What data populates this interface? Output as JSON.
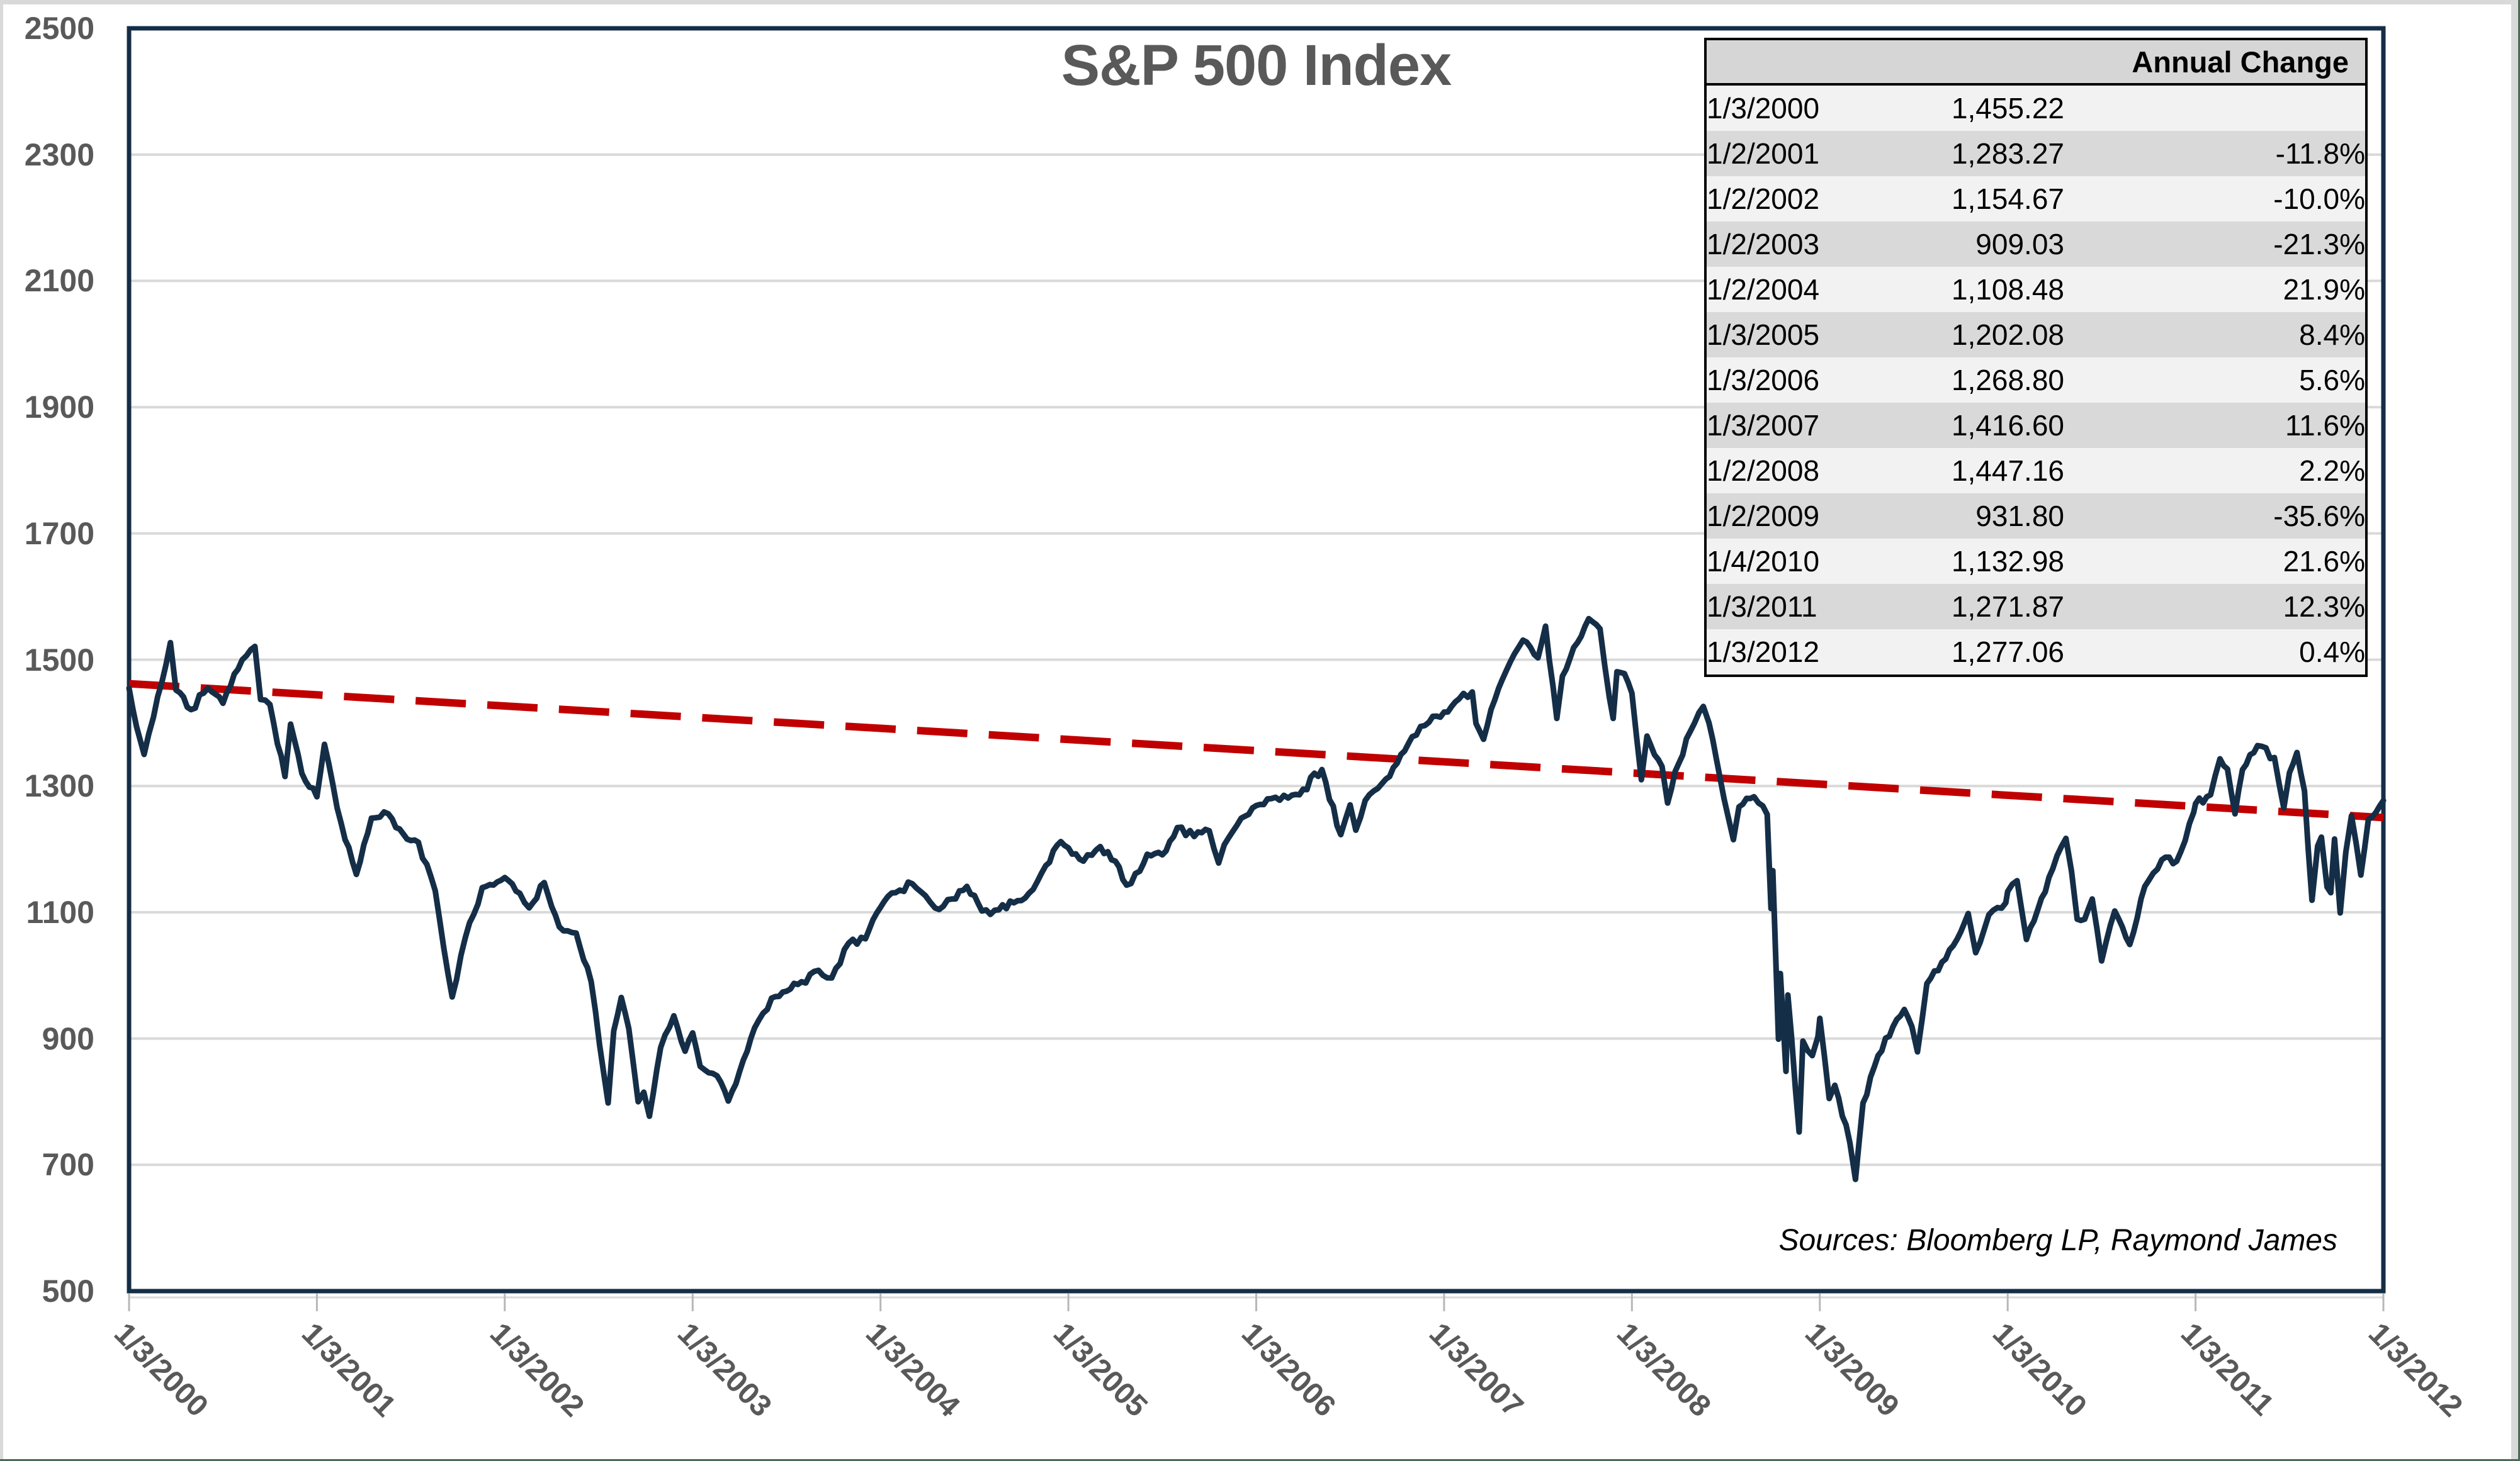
{
  "title": "S&P 500 Index",
  "sources_note": "Sources: Bloomberg LP, Raymond James",
  "table": {
    "header": "Annual Change",
    "rows": [
      {
        "date": "1/3/2000",
        "value": "1,455.22",
        "change": ""
      },
      {
        "date": "1/2/2001",
        "value": "1,283.27",
        "change": "-11.8%"
      },
      {
        "date": "1/2/2002",
        "value": "1,154.67",
        "change": "-10.0%"
      },
      {
        "date": "1/2/2003",
        "value": "909.03",
        "change": "-21.3%"
      },
      {
        "date": "1/2/2004",
        "value": "1,108.48",
        "change": "21.9%"
      },
      {
        "date": "1/3/2005",
        "value": "1,202.08",
        "change": "8.4%"
      },
      {
        "date": "1/3/2006",
        "value": "1,268.80",
        "change": "5.6%"
      },
      {
        "date": "1/3/2007",
        "value": "1,416.60",
        "change": "11.6%"
      },
      {
        "date": "1/2/2008",
        "value": "1,447.16",
        "change": "2.2%"
      },
      {
        "date": "1/2/2009",
        "value": "931.80",
        "change": "-35.6%"
      },
      {
        "date": "1/4/2010",
        "value": "1,132.98",
        "change": "21.6%"
      },
      {
        "date": "1/3/2011",
        "value": "1,271.87",
        "change": "12.3%"
      },
      {
        "date": "1/3/2012",
        "value": "1,277.06",
        "change": "0.4%"
      }
    ]
  },
  "chart_data": {
    "type": "line",
    "title": "S&P 500 Index",
    "xlabel": "",
    "ylabel": "",
    "ylim": [
      500,
      2500
    ],
    "y_ticks": [
      2500,
      2300,
      2100,
      1900,
      1700,
      1500,
      1300,
      1100,
      900,
      700,
      500
    ],
    "x_range_years_from_2000": [
      0,
      12
    ],
    "x_tick_labels": [
      "1/3/2000",
      "1/3/2001",
      "1/3/2002",
      "1/3/2003",
      "1/3/2004",
      "1/3/2005",
      "1/3/2006",
      "1/3/2007",
      "1/3/2008",
      "1/3/2009",
      "1/3/2010",
      "1/3/2011",
      "1/3/2012"
    ],
    "grid": true,
    "legend": "none",
    "annual_closes": [
      {
        "date": "1/3/2000",
        "close": 1455.22,
        "change_pct": null
      },
      {
        "date": "1/2/2001",
        "close": 1283.27,
        "change_pct": -11.8
      },
      {
        "date": "1/2/2002",
        "close": 1154.67,
        "change_pct": -10.0
      },
      {
        "date": "1/2/2003",
        "close": 909.03,
        "change_pct": -21.3
      },
      {
        "date": "1/2/2004",
        "close": 1108.48,
        "change_pct": 21.9
      },
      {
        "date": "1/3/2005",
        "close": 1202.08,
        "change_pct": 8.4
      },
      {
        "date": "1/3/2006",
        "close": 1268.8,
        "change_pct": 5.6
      },
      {
        "date": "1/3/2007",
        "close": 1416.6,
        "change_pct": 11.6
      },
      {
        "date": "1/2/2008",
        "close": 1447.16,
        "change_pct": 2.2
      },
      {
        "date": "1/2/2009",
        "close": 931.8,
        "change_pct": -35.6
      },
      {
        "date": "1/4/2010",
        "close": 1132.98,
        "change_pct": 21.6
      },
      {
        "date": "1/3/2011",
        "close": 1271.87,
        "change_pct": 12.3
      },
      {
        "date": "1/3/2012",
        "close": 1277.06,
        "change_pct": 0.4
      }
    ],
    "series": [
      {
        "name": "S&P 500 Index",
        "color": "#152e47",
        "style": "solid",
        "points": [
          [
            0.0,
            1455
          ],
          [
            0.04,
            1394
          ],
          [
            0.08,
            1350
          ],
          [
            0.13,
            1409
          ],
          [
            0.22,
            1527
          ],
          [
            0.25,
            1452
          ],
          [
            0.33,
            1421
          ],
          [
            0.42,
            1455
          ],
          [
            0.5,
            1431
          ],
          [
            0.58,
            1485
          ],
          [
            0.67,
            1521
          ],
          [
            0.7,
            1437
          ],
          [
            0.75,
            1429
          ],
          [
            0.83,
            1315
          ],
          [
            0.86,
            1398
          ],
          [
            0.92,
            1320
          ],
          [
            1.0,
            1283
          ],
          [
            1.04,
            1366
          ],
          [
            1.13,
            1240
          ],
          [
            1.21,
            1160
          ],
          [
            1.29,
            1249
          ],
          [
            1.38,
            1256
          ],
          [
            1.46,
            1224
          ],
          [
            1.54,
            1211
          ],
          [
            1.63,
            1134
          ],
          [
            1.72,
            966
          ],
          [
            1.79,
            1060
          ],
          [
            1.88,
            1139
          ],
          [
            1.96,
            1148
          ],
          [
            2.0,
            1155
          ],
          [
            2.08,
            1130
          ],
          [
            2.13,
            1107
          ],
          [
            2.21,
            1147
          ],
          [
            2.29,
            1077
          ],
          [
            2.38,
            1067
          ],
          [
            2.46,
            990
          ],
          [
            2.55,
            798
          ],
          [
            2.58,
            912
          ],
          [
            2.62,
            965
          ],
          [
            2.66,
            916
          ],
          [
            2.71,
            800
          ],
          [
            2.74,
            815
          ],
          [
            2.77,
            777
          ],
          [
            2.83,
            886
          ],
          [
            2.9,
            936
          ],
          [
            2.96,
            880
          ],
          [
            3.0,
            909
          ],
          [
            3.04,
            856
          ],
          [
            3.13,
            841
          ],
          [
            3.19,
            801
          ],
          [
            3.25,
            848
          ],
          [
            3.33,
            917
          ],
          [
            3.42,
            964
          ],
          [
            3.5,
            975
          ],
          [
            3.58,
            990
          ],
          [
            3.67,
            1008
          ],
          [
            3.74,
            996
          ],
          [
            3.83,
            1051
          ],
          [
            3.92,
            1058
          ],
          [
            4.0,
            1108
          ],
          [
            4.08,
            1131
          ],
          [
            4.17,
            1145
          ],
          [
            4.24,
            1126
          ],
          [
            4.29,
            1107
          ],
          [
            4.38,
            1121
          ],
          [
            4.46,
            1141
          ],
          [
            4.54,
            1102
          ],
          [
            4.63,
            1104
          ],
          [
            4.71,
            1115
          ],
          [
            4.79,
            1130
          ],
          [
            4.88,
            1174
          ],
          [
            4.96,
            1212
          ],
          [
            5.0,
            1202
          ],
          [
            5.08,
            1181
          ],
          [
            5.17,
            1204
          ],
          [
            5.25,
            1181
          ],
          [
            5.31,
            1143
          ],
          [
            5.38,
            1165
          ],
          [
            5.42,
            1192
          ],
          [
            5.5,
            1191
          ],
          [
            5.58,
            1234
          ],
          [
            5.67,
            1220
          ],
          [
            5.75,
            1229
          ],
          [
            5.8,
            1178
          ],
          [
            5.83,
            1207
          ],
          [
            5.92,
            1249
          ],
          [
            6.0,
            1269
          ],
          [
            6.08,
            1280
          ],
          [
            6.17,
            1281
          ],
          [
            6.25,
            1295
          ],
          [
            6.35,
            1326
          ],
          [
            6.45,
            1223
          ],
          [
            6.5,
            1270
          ],
          [
            6.53,
            1230
          ],
          [
            6.58,
            1277
          ],
          [
            6.67,
            1304
          ],
          [
            6.75,
            1336
          ],
          [
            6.83,
            1378
          ],
          [
            6.92,
            1401
          ],
          [
            7.0,
            1417
          ],
          [
            7.08,
            1438
          ],
          [
            7.15,
            1449
          ],
          [
            7.17,
            1399
          ],
          [
            7.21,
            1374
          ],
          [
            7.25,
            1421
          ],
          [
            7.33,
            1482
          ],
          [
            7.42,
            1531
          ],
          [
            7.5,
            1503
          ],
          [
            7.54,
            1553
          ],
          [
            7.6,
            1407
          ],
          [
            7.63,
            1474
          ],
          [
            7.71,
            1527
          ],
          [
            7.77,
            1565
          ],
          [
            7.83,
            1549
          ],
          [
            7.88,
            1440
          ],
          [
            7.9,
            1407
          ],
          [
            7.92,
            1481
          ],
          [
            7.96,
            1478
          ],
          [
            8.0,
            1447
          ],
          [
            8.05,
            1310
          ],
          [
            8.08,
            1379
          ],
          [
            8.16,
            1331
          ],
          [
            8.19,
            1273
          ],
          [
            8.23,
            1323
          ],
          [
            8.31,
            1386
          ],
          [
            8.38,
            1426
          ],
          [
            8.41,
            1400
          ],
          [
            8.49,
            1280
          ],
          [
            8.54,
            1215
          ],
          [
            8.57,
            1267
          ],
          [
            8.65,
            1283
          ],
          [
            8.72,
            1255
          ],
          [
            8.74,
            1106
          ],
          [
            8.75,
            1166
          ],
          [
            8.78,
            899
          ],
          [
            8.79,
            1003
          ],
          [
            8.82,
            848
          ],
          [
            8.83,
            969
          ],
          [
            8.89,
            752
          ],
          [
            8.91,
            896
          ],
          [
            8.96,
            873
          ],
          [
            8.99,
            903
          ],
          [
            9.0,
            932
          ],
          [
            9.05,
            805
          ],
          [
            9.08,
            826
          ],
          [
            9.16,
            735
          ],
          [
            9.19,
            677
          ],
          [
            9.23,
            798
          ],
          [
            9.31,
            873
          ],
          [
            9.39,
            919
          ],
          [
            9.45,
            946
          ],
          [
            9.49,
            919
          ],
          [
            9.52,
            879
          ],
          [
            9.57,
            987
          ],
          [
            9.65,
            1021
          ],
          [
            9.73,
            1057
          ],
          [
            9.79,
            1098
          ],
          [
            9.83,
            1036
          ],
          [
            9.9,
            1096
          ],
          [
            9.99,
            1115
          ],
          [
            10.0,
            1133
          ],
          [
            10.05,
            1150
          ],
          [
            10.1,
            1057
          ],
          [
            10.16,
            1104
          ],
          [
            10.24,
            1169
          ],
          [
            10.31,
            1217
          ],
          [
            10.34,
            1165
          ],
          [
            10.37,
            1089
          ],
          [
            10.41,
            1089
          ],
          [
            10.45,
            1121
          ],
          [
            10.5,
            1023
          ],
          [
            10.57,
            1102
          ],
          [
            10.65,
            1049
          ],
          [
            10.73,
            1141
          ],
          [
            10.82,
            1183
          ],
          [
            10.9,
            1181
          ],
          [
            10.99,
            1258
          ],
          [
            11.0,
            1272
          ],
          [
            11.08,
            1286
          ],
          [
            11.13,
            1343
          ],
          [
            11.17,
            1327
          ],
          [
            11.21,
            1256
          ],
          [
            11.25,
            1326
          ],
          [
            11.33,
            1364
          ],
          [
            11.42,
            1345
          ],
          [
            11.47,
            1265
          ],
          [
            11.5,
            1321
          ],
          [
            11.54,
            1353
          ],
          [
            11.58,
            1292
          ],
          [
            11.6,
            1200
          ],
          [
            11.62,
            1119
          ],
          [
            11.65,
            1205
          ],
          [
            11.67,
            1219
          ],
          [
            11.7,
            1140
          ],
          [
            11.72,
            1131
          ],
          [
            11.74,
            1216
          ],
          [
            11.77,
            1099
          ],
          [
            11.8,
            1195
          ],
          [
            11.83,
            1253
          ],
          [
            11.88,
            1159
          ],
          [
            11.92,
            1247
          ],
          [
            11.96,
            1258
          ],
          [
            12.0,
            1277
          ]
        ]
      },
      {
        "name": "Linear trend",
        "color": "#c00000",
        "style": "dashed",
        "points": [
          [
            0.0,
            1462
          ],
          [
            12.0,
            1250
          ]
        ]
      }
    ]
  },
  "colors": {
    "line_navy": "#152e47",
    "trend_red": "#c00000",
    "gridline": "#d9d9d9",
    "axis_text": "#595959",
    "tick_mark": "#b7b7b7",
    "table_header_bg": "#d6d6d6",
    "table_row_light": "#f2f2f2",
    "table_row_dark": "#d9d9d9",
    "page_edge_gray": "#d9d9d9",
    "page_edge_green": "#4b6a57"
  }
}
